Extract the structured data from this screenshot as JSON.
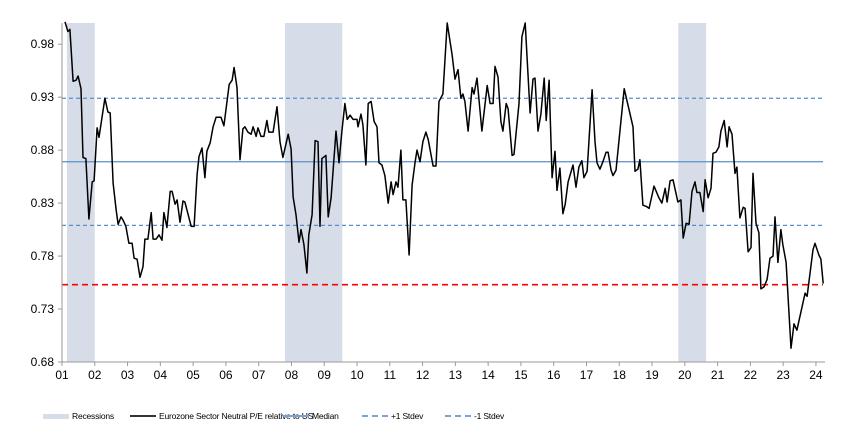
{
  "chart_data": {
    "type": "line",
    "title": "",
    "xlabel": "",
    "ylabel": "",
    "xlim": [
      2001.0,
      2024.22
    ],
    "ylim": [
      0.68,
      1.0
    ],
    "y_ticks": [
      "0.68",
      "0.73",
      "0.78",
      "0.83",
      "0.88",
      "0.93",
      "0.98"
    ],
    "y_tick_values": [
      0.68,
      0.73,
      0.78,
      0.83,
      0.88,
      0.93,
      0.98
    ],
    "x_ticks": [
      "01",
      "02",
      "03",
      "04",
      "05",
      "06",
      "07",
      "08",
      "09",
      "10",
      "11",
      "12",
      "13",
      "14",
      "15",
      "16",
      "17",
      "18",
      "19",
      "20",
      "21",
      "22",
      "23",
      "24"
    ],
    "x_tick_values": [
      2001,
      2002,
      2003,
      2004,
      2005,
      2006,
      2007,
      2008,
      2009,
      2010,
      2011,
      2012,
      2013,
      2014,
      2015,
      2016,
      2017,
      2018,
      2019,
      2020,
      2021,
      2022,
      2023,
      2024
    ],
    "grid": false,
    "legend_position": "bottom",
    "recessions": [
      [
        2001.15,
        2002.0
      ],
      [
        2007.8,
        2009.55
      ],
      [
        2019.8,
        2020.65
      ]
    ],
    "reference_lines": [
      {
        "name": "Median",
        "value": 0.869,
        "style": "solid",
        "color": "#5b8fc9"
      },
      {
        "name": "+1 Stdev",
        "value": 0.929,
        "style": "dashed",
        "color": "#5b8fc9"
      },
      {
        "name": "-1 Stdev",
        "value": 0.809,
        "style": "dashed",
        "color": "#5b8fc9"
      },
      {
        "value": 0.753,
        "style": "dashed",
        "color": "#ff0000"
      }
    ],
    "series": [
      {
        "name": "Eurozone Sector Neutral P/E relative to US",
        "color": "#000000",
        "points": [
          [
            2001.09,
            1.001
          ],
          [
            2001.18,
            0.992
          ],
          [
            2001.24,
            0.994
          ],
          [
            2001.34,
            0.945
          ],
          [
            2001.43,
            0.946
          ],
          [
            2001.49,
            0.95
          ],
          [
            2001.58,
            0.938
          ],
          [
            2001.64,
            0.873
          ],
          [
            2001.73,
            0.872
          ],
          [
            2001.82,
            0.815
          ],
          [
            2001.92,
            0.85
          ],
          [
            2001.98,
            0.851
          ],
          [
            2002.07,
            0.901
          ],
          [
            2002.13,
            0.892
          ],
          [
            2002.31,
            0.929
          ],
          [
            2002.4,
            0.916
          ],
          [
            2002.47,
            0.915
          ],
          [
            2002.56,
            0.849
          ],
          [
            2002.65,
            0.824
          ],
          [
            2002.71,
            0.81
          ],
          [
            2002.8,
            0.817
          ],
          [
            2002.86,
            0.814
          ],
          [
            2002.95,
            0.808
          ],
          [
            2003.04,
            0.792
          ],
          [
            2003.14,
            0.792
          ],
          [
            2003.2,
            0.778
          ],
          [
            2003.29,
            0.777
          ],
          [
            2003.38,
            0.76
          ],
          [
            2003.47,
            0.77
          ],
          [
            2003.53,
            0.796
          ],
          [
            2003.62,
            0.796
          ],
          [
            2003.72,
            0.821
          ],
          [
            2003.78,
            0.796
          ],
          [
            2003.87,
            0.796
          ],
          [
            2003.96,
            0.8
          ],
          [
            2004.05,
            0.795
          ],
          [
            2004.11,
            0.821
          ],
          [
            2004.2,
            0.807
          ],
          [
            2004.3,
            0.841
          ],
          [
            2004.36,
            0.841
          ],
          [
            2004.45,
            0.829
          ],
          [
            2004.51,
            0.833
          ],
          [
            2004.6,
            0.812
          ],
          [
            2004.69,
            0.832
          ],
          [
            2004.75,
            0.831
          ],
          [
            2004.94,
            0.808
          ],
          [
            2005.03,
            0.808
          ],
          [
            2005.12,
            0.857
          ],
          [
            2005.18,
            0.874
          ],
          [
            2005.27,
            0.882
          ],
          [
            2005.36,
            0.854
          ],
          [
            2005.42,
            0.879
          ],
          [
            2005.52,
            0.887
          ],
          [
            2005.61,
            0.902
          ],
          [
            2005.7,
            0.911
          ],
          [
            2005.85,
            0.911
          ],
          [
            2005.94,
            0.903
          ],
          [
            2006.1,
            0.942
          ],
          [
            2006.19,
            0.946
          ],
          [
            2006.25,
            0.958
          ],
          [
            2006.34,
            0.939
          ],
          [
            2006.43,
            0.871
          ],
          [
            2006.52,
            0.9
          ],
          [
            2006.58,
            0.902
          ],
          [
            2006.67,
            0.897
          ],
          [
            2006.77,
            0.895
          ],
          [
            2006.83,
            0.902
          ],
          [
            2006.92,
            0.893
          ],
          [
            2006.98,
            0.901
          ],
          [
            2007.07,
            0.893
          ],
          [
            2007.16,
            0.893
          ],
          [
            2007.25,
            0.908
          ],
          [
            2007.31,
            0.897
          ],
          [
            2007.44,
            0.897
          ],
          [
            2007.56,
            0.921
          ],
          [
            2007.65,
            0.888
          ],
          [
            2007.74,
            0.873
          ],
          [
            2007.9,
            0.895
          ],
          [
            2007.99,
            0.881
          ],
          [
            2008.05,
            0.836
          ],
          [
            2008.14,
            0.819
          ],
          [
            2008.23,
            0.793
          ],
          [
            2008.29,
            0.805
          ],
          [
            2008.38,
            0.791
          ],
          [
            2008.47,
            0.764
          ],
          [
            2008.53,
            0.8
          ],
          [
            2008.63,
            0.819
          ],
          [
            2008.72,
            0.889
          ],
          [
            2008.81,
            0.888
          ],
          [
            2008.87,
            0.808
          ],
          [
            2008.93,
            0.872
          ],
          [
            2009.05,
            0.875
          ],
          [
            2009.12,
            0.817
          ],
          [
            2009.21,
            0.835
          ],
          [
            2009.36,
            0.898
          ],
          [
            2009.45,
            0.868
          ],
          [
            2009.54,
            0.898
          ],
          [
            2009.63,
            0.924
          ],
          [
            2009.7,
            0.909
          ],
          [
            2009.79,
            0.913
          ],
          [
            2009.88,
            0.909
          ],
          [
            2010.0,
            0.909
          ],
          [
            2010.03,
            0.902
          ],
          [
            2010.12,
            0.914
          ],
          [
            2010.18,
            0.904
          ],
          [
            2010.27,
            0.866
          ],
          [
            2010.34,
            0.924
          ],
          [
            2010.43,
            0.926
          ],
          [
            2010.52,
            0.907
          ],
          [
            2010.61,
            0.902
          ],
          [
            2010.67,
            0.868
          ],
          [
            2010.76,
            0.866
          ],
          [
            2010.85,
            0.856
          ],
          [
            2010.95,
            0.83
          ],
          [
            2011.04,
            0.85
          ],
          [
            2011.1,
            0.838
          ],
          [
            2011.19,
            0.85
          ],
          [
            2011.25,
            0.845
          ],
          [
            2011.34,
            0.88
          ],
          [
            2011.4,
            0.833
          ],
          [
            2011.49,
            0.833
          ],
          [
            2011.59,
            0.781
          ],
          [
            2011.68,
            0.847
          ],
          [
            2011.77,
            0.868
          ],
          [
            2011.83,
            0.88
          ],
          [
            2011.92,
            0.869
          ],
          [
            2012.01,
            0.888
          ],
          [
            2012.1,
            0.897
          ],
          [
            2012.17,
            0.89
          ],
          [
            2012.32,
            0.865
          ],
          [
            2012.41,
            0.865
          ],
          [
            2012.5,
            0.926
          ],
          [
            2012.62,
            0.933
          ],
          [
            2012.75,
            1.0
          ],
          [
            2012.9,
            0.97
          ],
          [
            2012.99,
            0.947
          ],
          [
            2013.08,
            0.956
          ],
          [
            2013.17,
            0.929
          ],
          [
            2013.23,
            0.933
          ],
          [
            2013.29,
            0.926
          ],
          [
            2013.39,
            0.898
          ],
          [
            2013.51,
            0.939
          ],
          [
            2013.57,
            0.933
          ],
          [
            2013.66,
            0.948
          ],
          [
            2013.81,
            0.898
          ],
          [
            2013.97,
            0.941
          ],
          [
            2014.06,
            0.924
          ],
          [
            2014.15,
            0.924
          ],
          [
            2014.21,
            0.959
          ],
          [
            2014.3,
            0.949
          ],
          [
            2014.39,
            0.907
          ],
          [
            2014.45,
            0.898
          ],
          [
            2014.55,
            0.924
          ],
          [
            2014.61,
            0.919
          ],
          [
            2014.73,
            0.875
          ],
          [
            2014.79,
            0.876
          ],
          [
            2014.94,
            0.924
          ],
          [
            2015.03,
            0.987
          ],
          [
            2015.13,
            1.0
          ],
          [
            2015.28,
            0.915
          ],
          [
            2015.37,
            0.947
          ],
          [
            2015.43,
            0.948
          ],
          [
            2015.52,
            0.898
          ],
          [
            2015.61,
            0.914
          ],
          [
            2015.71,
            0.948
          ],
          [
            2015.77,
            0.908
          ],
          [
            2015.86,
            0.946
          ],
          [
            2015.95,
            0.854
          ],
          [
            2016.04,
            0.879
          ],
          [
            2016.1,
            0.842
          ],
          [
            2016.19,
            0.863
          ],
          [
            2016.28,
            0.82
          ],
          [
            2016.35,
            0.829
          ],
          [
            2016.44,
            0.85
          ],
          [
            2016.59,
            0.866
          ],
          [
            2016.68,
            0.845
          ],
          [
            2016.77,
            0.864
          ],
          [
            2016.86,
            0.87
          ],
          [
            2016.92,
            0.854
          ],
          [
            2017.02,
            0.86
          ],
          [
            2017.17,
            0.937
          ],
          [
            2017.26,
            0.888
          ],
          [
            2017.32,
            0.868
          ],
          [
            2017.41,
            0.862
          ],
          [
            2017.5,
            0.869
          ],
          [
            2017.6,
            0.878
          ],
          [
            2017.66,
            0.878
          ],
          [
            2017.75,
            0.861
          ],
          [
            2017.81,
            0.856
          ],
          [
            2017.9,
            0.861
          ],
          [
            2018.15,
            0.938
          ],
          [
            2018.42,
            0.902
          ],
          [
            2018.48,
            0.86
          ],
          [
            2018.57,
            0.862
          ],
          [
            2018.63,
            0.871
          ],
          [
            2018.72,
            0.828
          ],
          [
            2018.82,
            0.827
          ],
          [
            2018.91,
            0.825
          ],
          [
            2019.06,
            0.846
          ],
          [
            2019.21,
            0.835
          ],
          [
            2019.3,
            0.83
          ],
          [
            2019.4,
            0.844
          ],
          [
            2019.46,
            0.831
          ],
          [
            2019.55,
            0.851
          ],
          [
            2019.64,
            0.852
          ],
          [
            2019.79,
            0.831
          ],
          [
            2019.88,
            0.833
          ],
          [
            2019.95,
            0.797
          ],
          [
            2020.04,
            0.811
          ],
          [
            2020.13,
            0.81
          ],
          [
            2020.22,
            0.841
          ],
          [
            2020.31,
            0.85
          ],
          [
            2020.37,
            0.84
          ],
          [
            2020.46,
            0.84
          ],
          [
            2020.56,
            0.822
          ],
          [
            2020.62,
            0.852
          ],
          [
            2020.71,
            0.835
          ],
          [
            2020.8,
            0.844
          ],
          [
            2020.86,
            0.877
          ],
          [
            2020.95,
            0.878
          ],
          [
            2021.04,
            0.883
          ],
          [
            2021.1,
            0.898
          ],
          [
            2021.2,
            0.908
          ],
          [
            2021.29,
            0.883
          ],
          [
            2021.35,
            0.902
          ],
          [
            2021.44,
            0.895
          ],
          [
            2021.53,
            0.858
          ],
          [
            2021.59,
            0.864
          ],
          [
            2021.68,
            0.816
          ],
          [
            2021.78,
            0.826
          ],
          [
            2021.84,
            0.825
          ],
          [
            2021.93,
            0.784
          ],
          [
            2022.02,
            0.788
          ],
          [
            2022.08,
            0.858
          ],
          [
            2022.17,
            0.811
          ],
          [
            2022.26,
            0.802
          ],
          [
            2022.32,
            0.749
          ],
          [
            2022.42,
            0.751
          ],
          [
            2022.51,
            0.758
          ],
          [
            2022.6,
            0.778
          ],
          [
            2022.69,
            0.78
          ],
          [
            2022.75,
            0.817
          ],
          [
            2022.84,
            0.774
          ],
          [
            2022.93,
            0.805
          ],
          [
            2022.99,
            0.791
          ],
          [
            2023.09,
            0.774
          ],
          [
            2023.24,
            0.693
          ],
          [
            2023.33,
            0.716
          ],
          [
            2023.42,
            0.71
          ],
          [
            2023.67,
            0.745
          ],
          [
            2023.73,
            0.742
          ],
          [
            2023.91,
            0.786
          ],
          [
            2023.97,
            0.792
          ],
          [
            2024.09,
            0.781
          ],
          [
            2024.15,
            0.777
          ],
          [
            2024.22,
            0.754
          ]
        ]
      }
    ]
  },
  "legend": {
    "recessions": "Recessions",
    "series": "Eurozone Sector Neutral P/E relative to US",
    "median": "Median",
    "plus_stdev": "+1 Stdev",
    "minus_stdev": "-1 Stdev",
    "colors": {
      "recession": "#d6dde8",
      "series": "#333333",
      "median": "#7aa3cf",
      "stdev": "#7aa3cf"
    }
  }
}
